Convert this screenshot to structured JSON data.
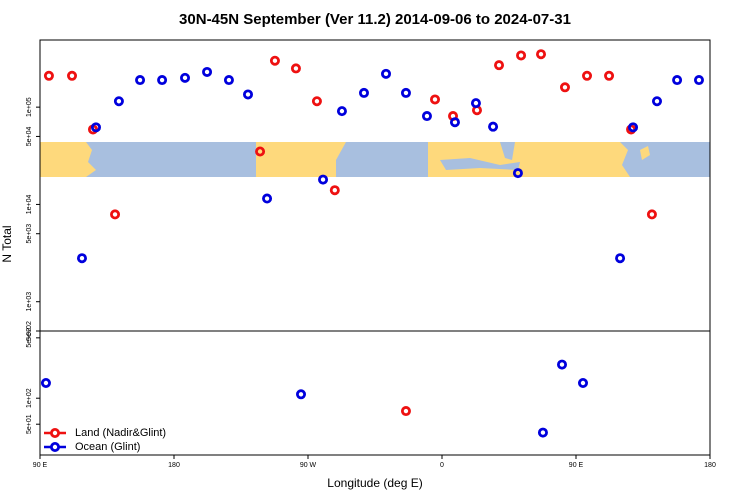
{
  "chart_data": [
    {
      "type": "scatter",
      "title": "30N-45N September (Ver 11.2)   2014-09-06 to 2024-07-31",
      "y_label": "N Total",
      "y_scale": "log",
      "xlim": [
        90,
        540
      ],
      "ylim": [
        500,
        490000
      ],
      "yticks": [
        {
          "value": 500,
          "label": "5e+02"
        },
        {
          "value": 1000,
          "label": "1e+03"
        },
        {
          "value": 5000,
          "label": "5e+03"
        },
        {
          "value": 10000,
          "label": "1e+04"
        },
        {
          "value": 50000,
          "label": "5e+04"
        },
        {
          "value": 100000,
          "label": "1e+05"
        }
      ],
      "series": [
        {
          "color": "#ee1111",
          "x": [
            96,
            111.5,
            125.6,
            140.4,
            237.8,
            247.8,
            261.9,
            276,
            288,
            355.3,
            367.4,
            383.5,
            398.3,
            413.1,
            426.5,
            442.6,
            457.4,
            472.2,
            487,
            501
          ],
          "values": [
            210000,
            210000,
            59000,
            7900,
            35000,
            300000,
            250000,
            115000,
            14000,
            120000,
            81000,
            93000,
            270000,
            340000,
            350000,
            160000,
            210000,
            210000,
            59000,
            7900
          ]
        },
        {
          "color": "#0000dd",
          "x": [
            118.2,
            127.6,
            143,
            157.2,
            172,
            187.4,
            202.2,
            216.9,
            229.7,
            242.5,
            280.1,
            292.8,
            307.6,
            322.4,
            335.8,
            349.9,
            368.7,
            382.8,
            394.3,
            411,
            479.6,
            488.3,
            504.4,
            517.9,
            532.6
          ],
          "values": [
            2800,
            62000,
            115000,
            190000,
            190000,
            200000,
            230000,
            190000,
            135000,
            11500,
            18000,
            91000,
            140000,
            220000,
            140000,
            81000,
            70000,
            110000,
            63000,
            21000,
            2800,
            62000,
            115000,
            190000,
            190000
          ]
        }
      ]
    },
    {
      "type": "scatter",
      "x_label": "Longitude (deg E)",
      "y_scale": "log",
      "xlim": [
        90,
        540
      ],
      "xticks": [
        {
          "value": 90,
          "label": "90 E"
        },
        180,
        {
          "value": 270,
          "label": "90 W"
        },
        {
          "value": 360,
          "label": "0"
        },
        {
          "value": 450,
          "label": "90 E"
        },
        {
          "value": 540,
          "label": "180"
        }
      ],
      "ylim": [
        22,
        600
      ],
      "yticks": [
        {
          "value": 50,
          "label": "5e+01"
        },
        {
          "value": 100,
          "label": "1e+02"
        },
        {
          "value": 500,
          "label": "5e+02"
        }
      ],
      "legend": "lower left",
      "series": [
        {
          "name": "Land (Nadir&Glint)",
          "color": "#ee1111",
          "x": [
            335.8
          ],
          "values": [
            71
          ]
        },
        {
          "name": "Ocean (Glint)",
          "color": "#0000dd",
          "x": [
            94,
            265.3,
            427.8,
            440.6,
            454.7
          ],
          "values": [
            150,
            111,
            40,
            245,
            150
          ]
        }
      ]
    }
  ]
}
